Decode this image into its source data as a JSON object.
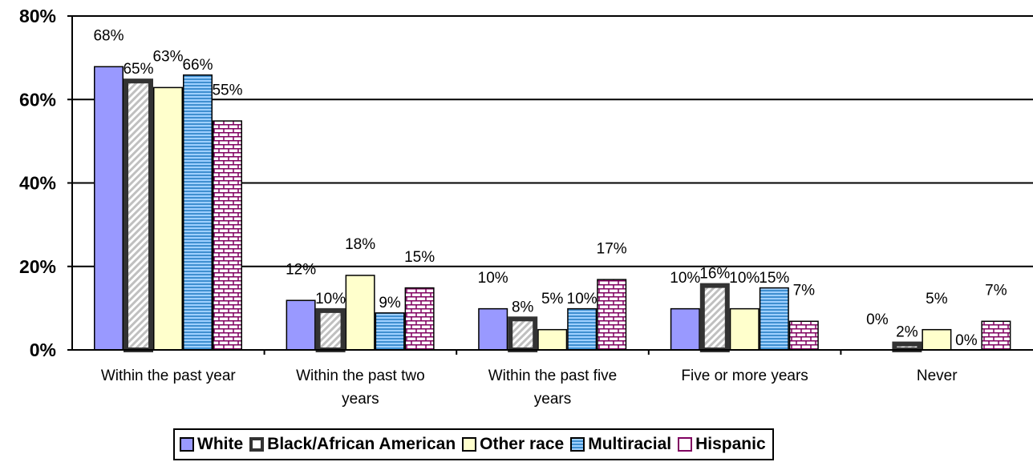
{
  "chart_data": {
    "type": "bar",
    "categories": [
      [
        "Within the past year"
      ],
      [
        "Within the past two",
        "years"
      ],
      [
        "Within the past five",
        "years"
      ],
      [
        "Five or more years"
      ],
      [
        "Never"
      ]
    ],
    "ylim": [
      0,
      80
    ],
    "yticks": [
      "0%",
      "20%",
      "40%",
      "60%",
      "80%"
    ],
    "ytick_values": [
      0,
      20,
      40,
      60,
      80
    ],
    "grid": true,
    "legend_position": "bottom",
    "series": [
      {
        "name": "White",
        "values": [
          68,
          12,
          10,
          10,
          0
        ],
        "labels": [
          "68%",
          "12%",
          "10%",
          "10%",
          "0%"
        ],
        "color": "#9999ff",
        "pattern": "solid"
      },
      {
        "name": "Black/African American",
        "values": [
          65,
          10,
          8,
          16,
          2
        ],
        "labels": [
          "65%",
          "10%",
          "8%",
          "16%",
          "2%"
        ],
        "color": "#c8c8c8",
        "pattern": "diagonal",
        "border": "#333333"
      },
      {
        "name": "Other race",
        "values": [
          63,
          18,
          5,
          10,
          5
        ],
        "labels": [
          "63%",
          "18%",
          "5%",
          "10%",
          "5%"
        ],
        "color": "#ffffcc",
        "pattern": "solid"
      },
      {
        "name": "Multiracial",
        "values": [
          66,
          9,
          10,
          15,
          0
        ],
        "labels": [
          "66%",
          "9%",
          "10%",
          "15%",
          "0%"
        ],
        "color": "#7ab8ff",
        "pattern": "horizontal"
      },
      {
        "name": "Hispanic",
        "values": [
          55,
          15,
          17,
          7,
          7
        ],
        "labels": [
          "55%",
          "15%",
          "17%",
          "7%",
          "7%"
        ],
        "color": "#800060",
        "pattern": "brick"
      }
    ]
  }
}
